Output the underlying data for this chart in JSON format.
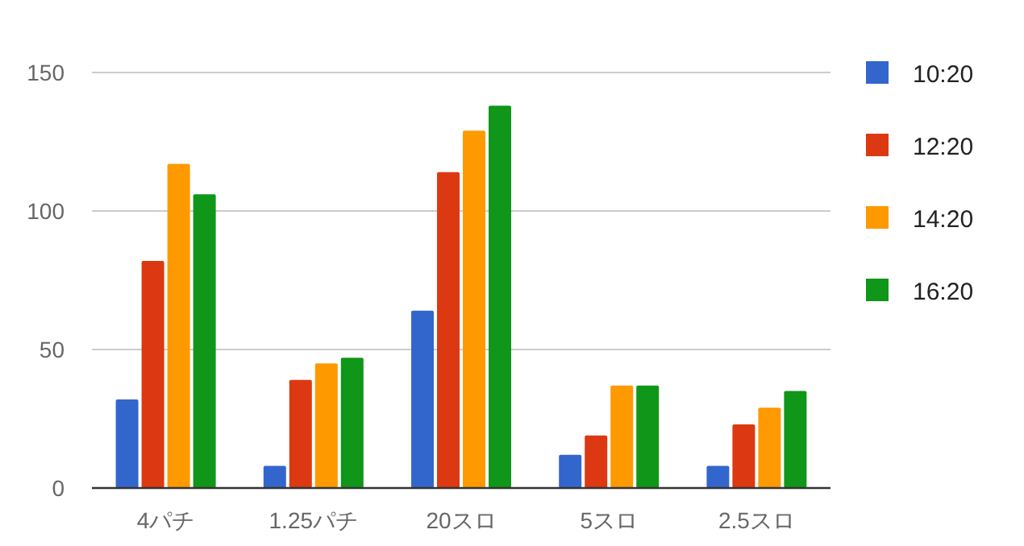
{
  "chart_data": {
    "type": "bar",
    "categories": [
      "4パチ",
      "1.25パチ",
      "20スロ",
      "5スロ",
      "2.5スロ"
    ],
    "series": [
      {
        "name": "10:20",
        "color": "#3366cc",
        "values": [
          32,
          8,
          64,
          12,
          8
        ]
      },
      {
        "name": "12:20",
        "color": "#dc3912",
        "values": [
          82,
          39,
          114,
          19,
          23
        ]
      },
      {
        "name": "14:20",
        "color": "#ff9900",
        "values": [
          117,
          45,
          129,
          37,
          29
        ]
      },
      {
        "name": "16:20",
        "color": "#109618",
        "values": [
          106,
          47,
          138,
          37,
          35
        ]
      }
    ],
    "ylim": [
      0,
      150
    ],
    "yticks": [
      0,
      50,
      100,
      150
    ],
    "grid": "y",
    "legend": "right"
  }
}
